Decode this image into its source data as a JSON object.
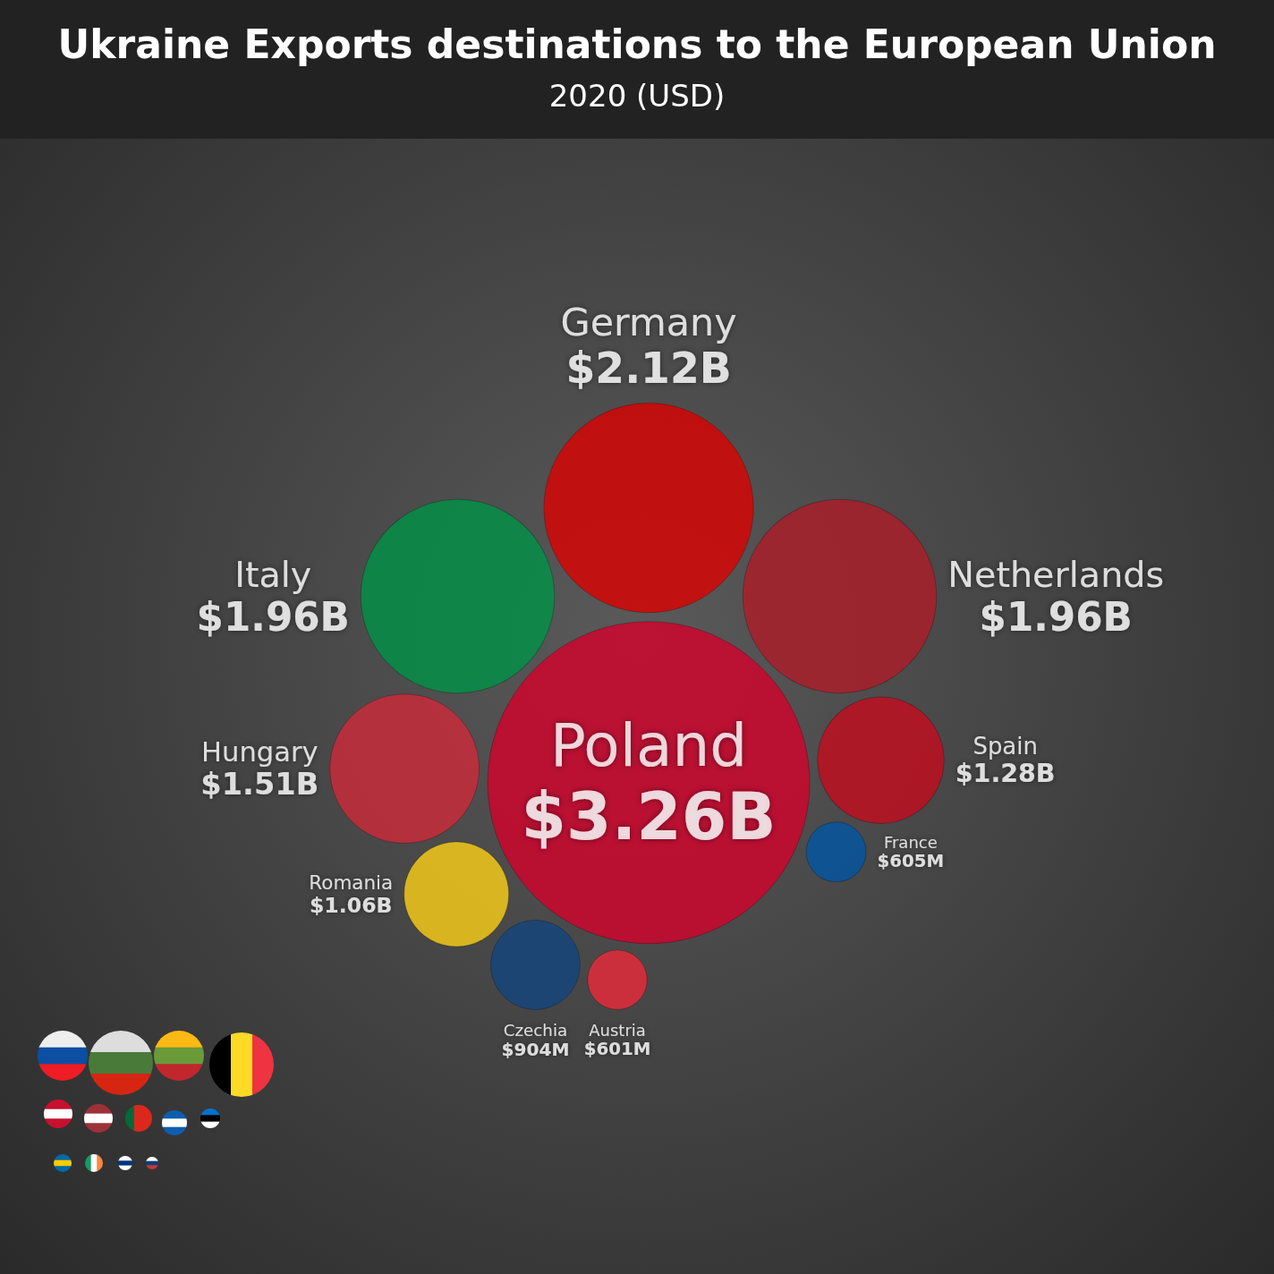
{
  "chart_data": {
    "type": "other",
    "title": "Ukraine Exports destinations to the European Union",
    "subtitle": "2020 (USD)",
    "categories": [
      "Poland",
      "Germany",
      "Italy",
      "Netherlands",
      "Hungary",
      "Spain",
      "Romania",
      "Czechia",
      "France",
      "Austria"
    ],
    "values": [
      3260000000,
      2120000000,
      1960000000,
      1960000000,
      1510000000,
      1280000000,
      1060000000,
      904000000,
      605000000,
      601000000
    ],
    "value_labels": [
      "$3.26B",
      "$2.12B",
      "$1.96B",
      "$1.96B",
      "$1.51B",
      "$1.28B",
      "$1.06B",
      "$904M",
      "$605M",
      "$601M"
    ],
    "colors": [
      "#d4002a",
      "#dd0000",
      "#009246",
      "#ae1c28",
      "#ce2939",
      "#c60b1e",
      "#fcd116",
      "#11457e",
      "#0055a4",
      "#ed2939"
    ]
  }
}
